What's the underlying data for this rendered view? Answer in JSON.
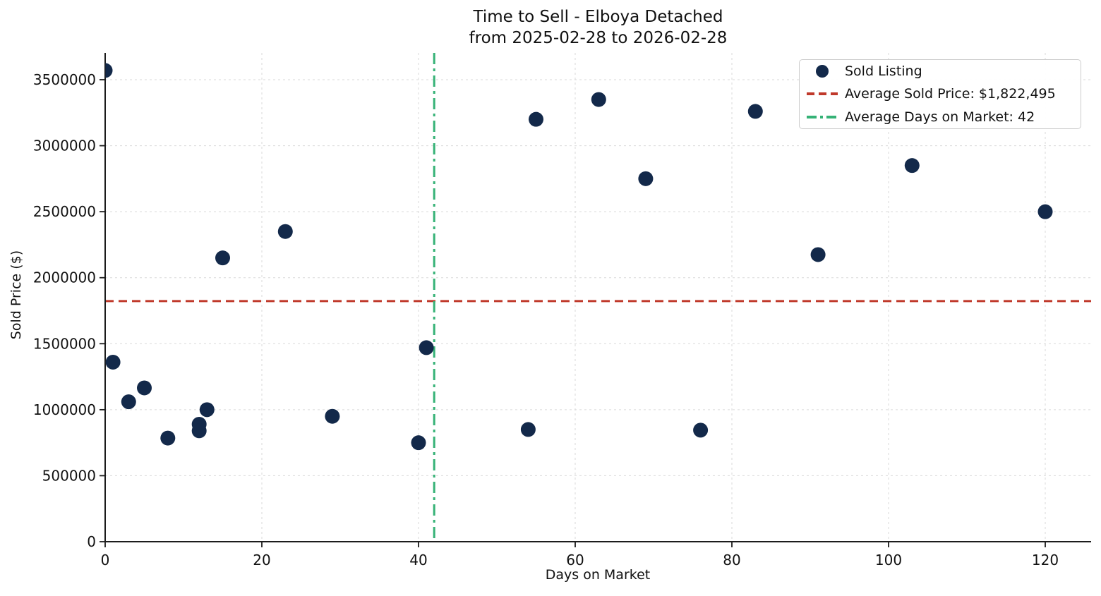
{
  "chart_data": {
    "type": "scatter",
    "title": "Time to Sell - Elboya Detached\nfrom 2025-02-28 to 2026-02-28",
    "title_line1": "Time to Sell - Elboya Detached",
    "title_line2": "from 2025-02-28 to 2026-02-28",
    "xlabel": "Days on Market",
    "ylabel": "Sold Price ($)",
    "xlim": [
      0,
      126
    ],
    "ylim": [
      0,
      3700000
    ],
    "x_ticks": [
      0,
      20,
      40,
      60,
      80,
      100,
      120
    ],
    "y_ticks": [
      0,
      500000,
      1000000,
      1500000,
      2000000,
      2500000,
      3000000,
      3500000
    ],
    "grid": true,
    "legend_position": "upper right",
    "series": [
      {
        "name": "Sold Listing",
        "type": "scatter",
        "color": "#13294a",
        "points": [
          [
            0,
            3570000
          ],
          [
            1,
            1360000
          ],
          [
            3,
            1060000
          ],
          [
            5,
            1165000
          ],
          [
            8,
            785000
          ],
          [
            12,
            890000
          ],
          [
            12,
            840000
          ],
          [
            13,
            1000000
          ],
          [
            15,
            2150000
          ],
          [
            23,
            2350000
          ],
          [
            29,
            950000
          ],
          [
            40,
            750000
          ],
          [
            41,
            1470000
          ],
          [
            54,
            850000
          ],
          [
            55,
            3200000
          ],
          [
            63,
            3350000
          ],
          [
            69,
            2750000
          ],
          [
            76,
            845000
          ],
          [
            83,
            3260000
          ],
          [
            91,
            2175000
          ],
          [
            103,
            2850000
          ],
          [
            120,
            2500000
          ]
        ]
      }
    ],
    "reference_lines": [
      {
        "name": "average-sold-price-line",
        "label": "Average Sold Price: $1,822,495",
        "orientation": "horizontal",
        "value": 1822495,
        "color": "#c0392b",
        "style": "dashed"
      },
      {
        "name": "average-days-on-market-line",
        "label": "Average Days on Market: 42",
        "orientation": "vertical",
        "value": 42,
        "color": "#35b276",
        "style": "dashdot"
      }
    ],
    "legend": {
      "items": [
        {
          "label": "Sold Listing",
          "marker": "dot-marker",
          "color": "#13294a"
        },
        {
          "label": "Average Sold Price: $1,822,495",
          "marker": "dashed-line-marker",
          "color": "#c0392b"
        },
        {
          "label": "Average Days on Market: 42",
          "marker": "dashdot-line-marker",
          "color": "#35b276"
        }
      ]
    },
    "colors": {
      "point": "#13294a",
      "avg_price_line": "#c0392b",
      "avg_days_line": "#35b276",
      "grid": "#d9d9d9",
      "axis": "#1c1c1c",
      "text": "#111111"
    }
  }
}
